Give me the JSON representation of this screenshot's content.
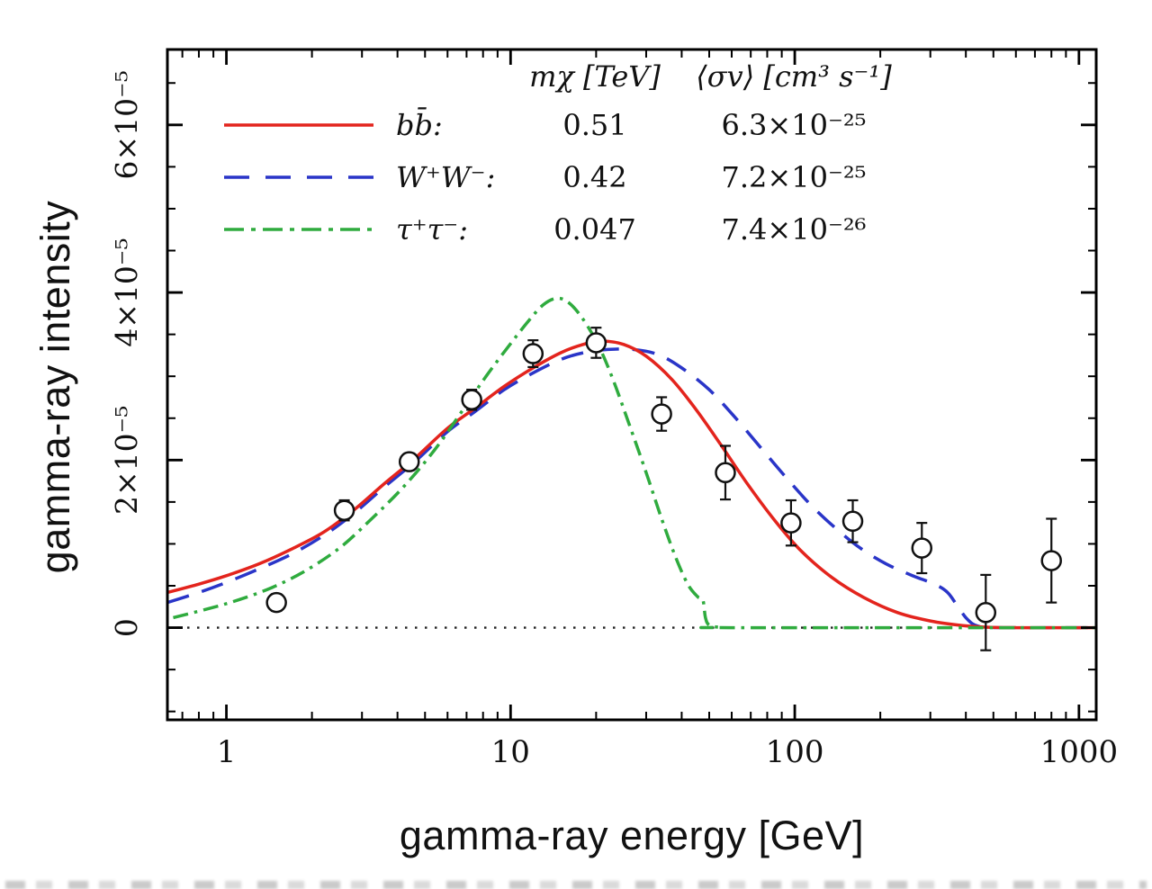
{
  "chart_data": {
    "type": "line+scatter",
    "title": "",
    "xlabel": "gamma-ray energy [GeV]",
    "ylabel": "gamma-ray intensity",
    "x_scale": "log",
    "y_scale": "linear",
    "y_unit": "1e-5",
    "xlim": [
      0.62,
      1150
    ],
    "ylim_e5": [
      -1.1,
      6.9
    ],
    "x_ticks": [
      1,
      10,
      100,
      1000
    ],
    "x_tick_labels": [
      "1",
      "10",
      "100",
      "1000"
    ],
    "y_ticks_e5": [
      0,
      2,
      4,
      6
    ],
    "y_tick_labels": [
      "0",
      "2×10⁻⁵",
      "4×10⁻⁵",
      "6×10⁻⁵"
    ],
    "y_minor_step_e5": 0.5,
    "zero_line_e5": 0,
    "frame": true,
    "grid": false,
    "legend": {
      "position": "top-inside",
      "col_mass_header": "mχ [TeV]",
      "col_sigma_header": "⟨σv⟩ [cm³ s⁻¹]",
      "rows": [
        {
          "label": "bb̄:",
          "mass": "0.51",
          "sigma": "6.3×10⁻²⁵",
          "color": "#e3241d",
          "style": "solid"
        },
        {
          "label": "W⁺W⁻:",
          "mass": "0.42",
          "sigma": "7.2×10⁻²⁵",
          "color": "#2a35c8",
          "style": "dashed"
        },
        {
          "label": "τ⁺τ⁻:",
          "mass": "0.047",
          "sigma": "7.4×10⁻²⁶",
          "color": "#2fab3e",
          "style": "dashdot"
        }
      ]
    },
    "series": [
      {
        "name": "W+W-",
        "color": "#2a35c8",
        "style": "dashed",
        "points_e5": [
          [
            0.62,
            0.3
          ],
          [
            0.8,
            0.42
          ],
          [
            1.0,
            0.54
          ],
          [
            1.3,
            0.7
          ],
          [
            1.7,
            0.88
          ],
          [
            2.2,
            1.1
          ],
          [
            2.8,
            1.36
          ],
          [
            3.6,
            1.68
          ],
          [
            4.6,
            1.98
          ],
          [
            6,
            2.34
          ],
          [
            7.5,
            2.58
          ],
          [
            9.5,
            2.84
          ],
          [
            12,
            3.04
          ],
          [
            15,
            3.2
          ],
          [
            18,
            3.28
          ],
          [
            22,
            3.32
          ],
          [
            27,
            3.32
          ],
          [
            33,
            3.26
          ],
          [
            40,
            3.1
          ],
          [
            50,
            2.84
          ],
          [
            62,
            2.5
          ],
          [
            78,
            2.1
          ],
          [
            95,
            1.76
          ],
          [
            115,
            1.45
          ],
          [
            140,
            1.18
          ],
          [
            170,
            0.95
          ],
          [
            210,
            0.76
          ],
          [
            260,
            0.62
          ],
          [
            310,
            0.52
          ],
          [
            345,
            0.42
          ],
          [
            375,
            0.25
          ],
          [
            405,
            0.1
          ],
          [
            440,
            0.02
          ],
          [
            520,
            0
          ],
          [
            1150,
            0
          ]
        ]
      },
      {
        "name": "bb",
        "color": "#e3241d",
        "style": "solid",
        "points_e5": [
          [
            0.62,
            0.42
          ],
          [
            0.8,
            0.52
          ],
          [
            1.0,
            0.62
          ],
          [
            1.3,
            0.76
          ],
          [
            1.7,
            0.94
          ],
          [
            2.2,
            1.14
          ],
          [
            2.8,
            1.4
          ],
          [
            3.6,
            1.72
          ],
          [
            4.6,
            2.02
          ],
          [
            6,
            2.38
          ],
          [
            7.5,
            2.62
          ],
          [
            9.5,
            2.88
          ],
          [
            12,
            3.1
          ],
          [
            15,
            3.28
          ],
          [
            18,
            3.38
          ],
          [
            21,
            3.42
          ],
          [
            25,
            3.38
          ],
          [
            30,
            3.24
          ],
          [
            37,
            2.96
          ],
          [
            45,
            2.6
          ],
          [
            55,
            2.18
          ],
          [
            68,
            1.72
          ],
          [
            85,
            1.28
          ],
          [
            105,
            0.92
          ],
          [
            135,
            0.6
          ],
          [
            175,
            0.36
          ],
          [
            230,
            0.18
          ],
          [
            300,
            0.08
          ],
          [
            390,
            0.025
          ],
          [
            480,
            0.005
          ],
          [
            600,
            0
          ],
          [
            1150,
            0
          ]
        ]
      },
      {
        "name": "tau+tau-",
        "color": "#2fab3e",
        "style": "dashdot",
        "points_e5": [
          [
            0.65,
            0.12
          ],
          [
            0.85,
            0.22
          ],
          [
            1.1,
            0.33
          ],
          [
            1.45,
            0.48
          ],
          [
            1.9,
            0.68
          ],
          [
            2.5,
            0.95
          ],
          [
            3.2,
            1.28
          ],
          [
            4.2,
            1.68
          ],
          [
            5.4,
            2.12
          ],
          [
            6.8,
            2.6
          ],
          [
            8.2,
            3.0
          ],
          [
            9.8,
            3.35
          ],
          [
            11.5,
            3.65
          ],
          [
            13,
            3.85
          ],
          [
            14.5,
            3.93
          ],
          [
            16,
            3.88
          ],
          [
            18,
            3.68
          ],
          [
            20.5,
            3.35
          ],
          [
            23,
            2.95
          ],
          [
            26,
            2.45
          ],
          [
            30,
            1.85
          ],
          [
            34,
            1.3
          ],
          [
            38,
            0.85
          ],
          [
            42,
            0.52
          ],
          [
            45.5,
            0.37
          ],
          [
            47.5,
            0.33
          ],
          [
            48.5,
            0.12
          ],
          [
            50,
            0.03
          ],
          [
            54,
            0.005
          ],
          [
            60,
            0
          ],
          [
            1150,
            0
          ]
        ]
      }
    ],
    "data_points_e5": [
      [
        1.5,
        0.3,
        0.1
      ],
      [
        2.6,
        1.4,
        0.12
      ],
      [
        4.4,
        1.98,
        0.1
      ],
      [
        7.3,
        2.72,
        0.12
      ],
      [
        12,
        3.27,
        0.16
      ],
      [
        20,
        3.4,
        0.18
      ],
      [
        34,
        2.55,
        0.2
      ],
      [
        57,
        1.85,
        0.32
      ],
      [
        97,
        1.25,
        0.27
      ],
      [
        160,
        1.27,
        0.25
      ],
      [
        280,
        0.95,
        0.3
      ],
      [
        470,
        0.18,
        0.45
      ],
      [
        800,
        0.8,
        0.5
      ]
    ]
  }
}
